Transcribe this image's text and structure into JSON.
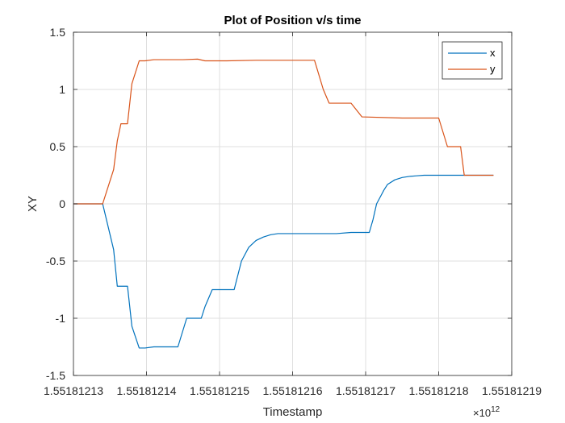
{
  "chart_data": {
    "type": "line",
    "title": "Plot of Position v/s time",
    "xlabel": "Timestamp",
    "ylabel": "XY",
    "x_exponent_base": "×10",
    "x_exponent_power": "12",
    "xlim": [
      1.55181213,
      1.55181219
    ],
    "ylim": [
      -1.5,
      1.5
    ],
    "x_ticks": [
      1.55181213,
      1.55181214,
      1.55181215,
      1.55181216,
      1.55181217,
      1.55181218,
      1.55181219
    ],
    "x_tick_labels": [
      "1.55181213",
      "1.55181214",
      "1.55181215",
      "1.55181216",
      "1.55181217",
      "1.55181218",
      "1.55181219"
    ],
    "y_ticks": [
      -1.5,
      -1,
      -0.5,
      0,
      0.5,
      1,
      1.5
    ],
    "y_tick_labels": [
      "-1.5",
      "-1",
      "-0.5",
      "0",
      "0.5",
      "1",
      "1.5"
    ],
    "grid": true,
    "legend_position": "top-right",
    "series": [
      {
        "name": "x",
        "color": "#0072BD",
        "x": [
          1.55181213,
          1.551812134,
          1.5518121355,
          1.551812136,
          1.5518121365,
          1.5518121374,
          1.551812138,
          1.551812139,
          1.5518121398,
          1.551812141,
          1.5518121443,
          1.5518121455,
          1.5518121475,
          1.551812148,
          1.551812149,
          1.551812151,
          1.5518121513,
          1.551812152,
          1.551812153,
          1.551812154,
          1.551812155,
          1.551812156,
          1.551812157,
          1.551812158,
          1.55181216,
          1.551812162,
          1.551812164,
          1.551812166,
          1.551812168,
          1.551812169,
          1.5518121705,
          1.551812171,
          1.5518121715,
          1.551812172,
          1.5518121725,
          1.551812173,
          1.551812174,
          1.551812175,
          1.551812176,
          1.551812177,
          1.551812178,
          1.551812179,
          1.55181218,
          1.551812182,
          1.5518121835,
          1.5518121875
        ],
        "y": [
          0,
          0,
          -0.4,
          -0.72,
          -0.72,
          -0.72,
          -1.07,
          -1.26,
          -1.26,
          -1.25,
          -1.25,
          -1.0,
          -1.0,
          -0.9,
          -0.75,
          -0.75,
          -0.75,
          -0.75,
          -0.5,
          -0.38,
          -0.32,
          -0.29,
          -0.27,
          -0.26,
          -0.26,
          -0.26,
          -0.26,
          -0.26,
          -0.25,
          -0.25,
          -0.25,
          -0.14,
          0.0,
          0.06,
          0.12,
          0.17,
          0.21,
          0.23,
          0.24,
          0.245,
          0.25,
          0.25,
          0.25,
          0.25,
          0.25,
          0.25
        ]
      },
      {
        "name": "y",
        "color": "#D95319",
        "x": [
          1.55181213,
          1.551812134,
          1.5518121355,
          1.551812136,
          1.5518121365,
          1.5518121374,
          1.551812138,
          1.551812139,
          1.5518121398,
          1.551812141,
          1.551812145,
          1.551812147,
          1.551812148,
          1.551812151,
          1.551812155,
          1.551812163,
          1.5518121642,
          1.551812165,
          1.551812168,
          1.5518121695,
          1.551812175,
          1.5518121755,
          1.55181218,
          1.5518121812,
          1.551812183,
          1.5518121835,
          1.5518121875
        ],
        "y": [
          0,
          0,
          0.3,
          0.55,
          0.7,
          0.7,
          1.05,
          1.25,
          1.25,
          1.26,
          1.26,
          1.265,
          1.25,
          1.25,
          1.255,
          1.255,
          1.0,
          0.88,
          0.88,
          0.76,
          0.75,
          0.75,
          0.75,
          0.5,
          0.5,
          0.25,
          0.25
        ]
      }
    ]
  }
}
